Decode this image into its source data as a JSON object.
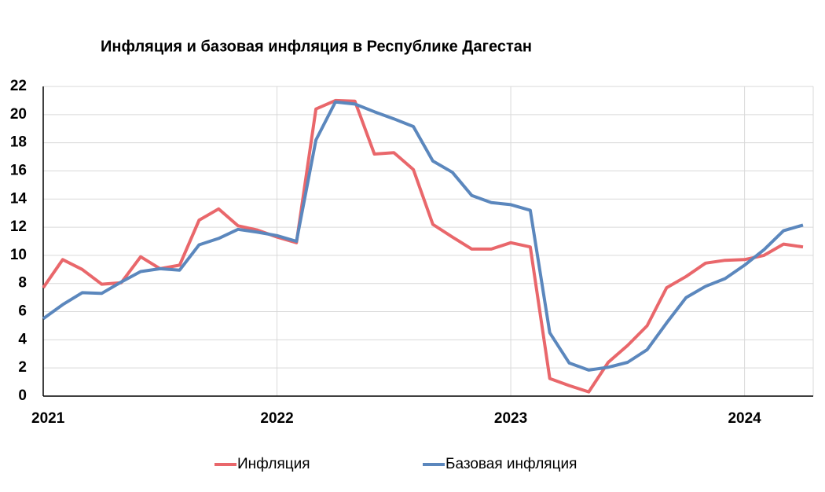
{
  "chart_data": {
    "type": "line",
    "title": "Инфляция и базовая инфляция в Республике Дагестан",
    "categories": [
      "2021",
      null,
      null,
      null,
      null,
      null,
      null,
      null,
      null,
      null,
      null,
      null,
      "2022",
      null,
      null,
      null,
      null,
      null,
      null,
      null,
      null,
      null,
      null,
      null,
      "2023",
      null,
      null,
      null,
      null,
      null,
      null,
      null,
      null,
      null,
      null,
      null,
      "2024",
      null,
      null,
      null
    ],
    "series": [
      {
        "name": "Инфляция",
        "color": "#e9676b",
        "values": [
          7.7,
          9.7,
          9.0,
          7.95,
          8.05,
          9.9,
          9.05,
          9.3,
          12.5,
          13.3,
          12.1,
          11.8,
          11.3,
          10.9,
          20.4,
          21.0,
          20.95,
          17.2,
          17.3,
          16.1,
          12.2,
          11.3,
          10.45,
          10.45,
          10.9,
          10.6,
          1.25,
          0.75,
          0.3,
          2.4,
          3.6,
          5.0,
          7.7,
          8.5,
          9.45,
          9.65,
          9.7,
          10.0,
          10.8,
          10.6
        ]
      },
      {
        "name": "Базовая инфляция",
        "color": "#5b87bd",
        "values": [
          5.5,
          6.5,
          7.35,
          7.3,
          8.1,
          8.85,
          9.05,
          8.95,
          10.75,
          11.2,
          11.85,
          11.65,
          11.4,
          11.0,
          18.2,
          20.9,
          20.75,
          20.2,
          19.7,
          19.15,
          16.7,
          15.9,
          14.25,
          13.75,
          13.6,
          13.2,
          4.5,
          2.35,
          1.85,
          2.05,
          2.4,
          3.3,
          5.2,
          7.0,
          7.8,
          8.35,
          9.3,
          10.4,
          11.75,
          12.15
        ]
      }
    ],
    "ylim": [
      0,
      22
    ],
    "yticks": [
      0,
      2,
      4,
      6,
      8,
      10,
      12,
      14,
      16,
      18,
      20,
      22
    ],
    "grid": true,
    "legend": "bottom"
  }
}
